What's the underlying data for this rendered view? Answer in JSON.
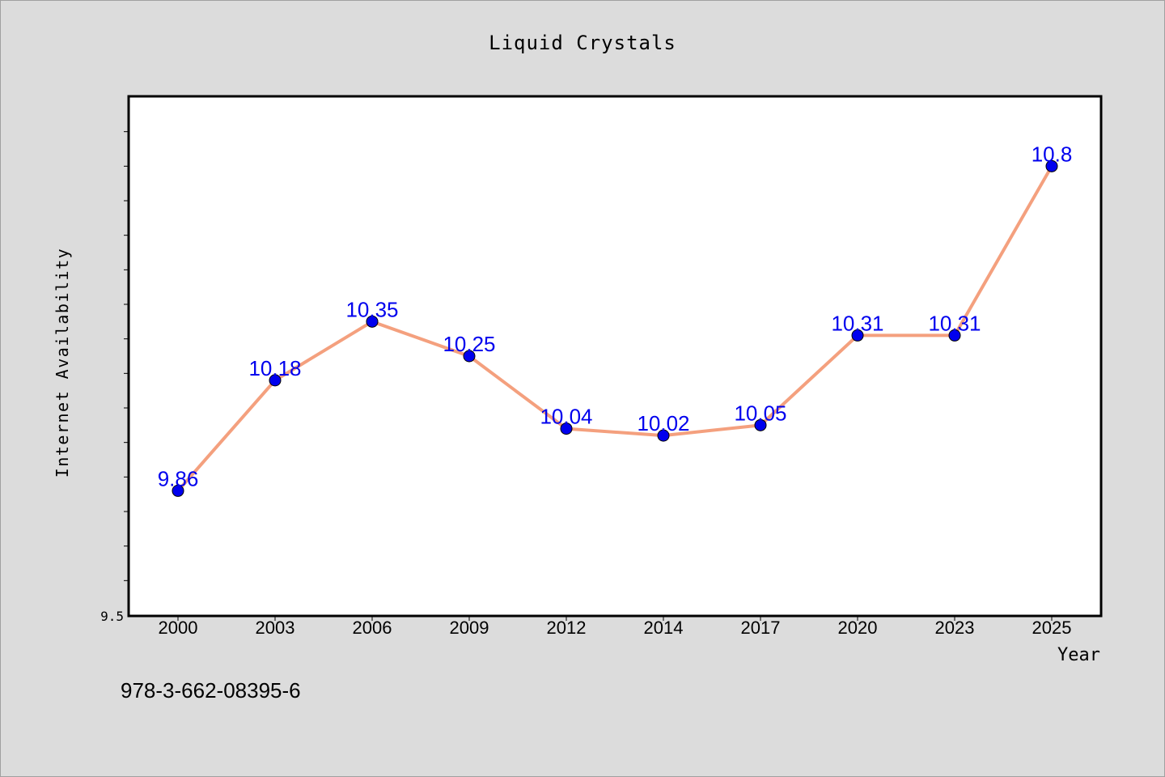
{
  "chart_data": {
    "type": "line",
    "title": "Liquid Crystals",
    "xlabel": "Year",
    "ylabel": "Internet Availability",
    "categories": [
      "2000",
      "2003",
      "2006",
      "2009",
      "2012",
      "2014",
      "2017",
      "2020",
      "2023",
      "2025"
    ],
    "series": [
      {
        "values": [
          9.86,
          10.18,
          10.35,
          10.25,
          10.04,
          10.02,
          10.05,
          10.31,
          10.31,
          10.8
        ],
        "data_labels": [
          "9.86",
          "10.18",
          "10.35",
          "10.25",
          "10.04",
          "10.02",
          "10.05",
          "10.31",
          "10.31",
          "10.8"
        ]
      }
    ],
    "ylim": [
      9.5,
      11.0
    ],
    "y_tick_labels": [
      "9.5"
    ],
    "grid": false,
    "line_color": "#f4a07e",
    "marker_color": "#0000ee",
    "label_color": "#0000ee"
  },
  "footer_text": "978-3-662-08395-6"
}
